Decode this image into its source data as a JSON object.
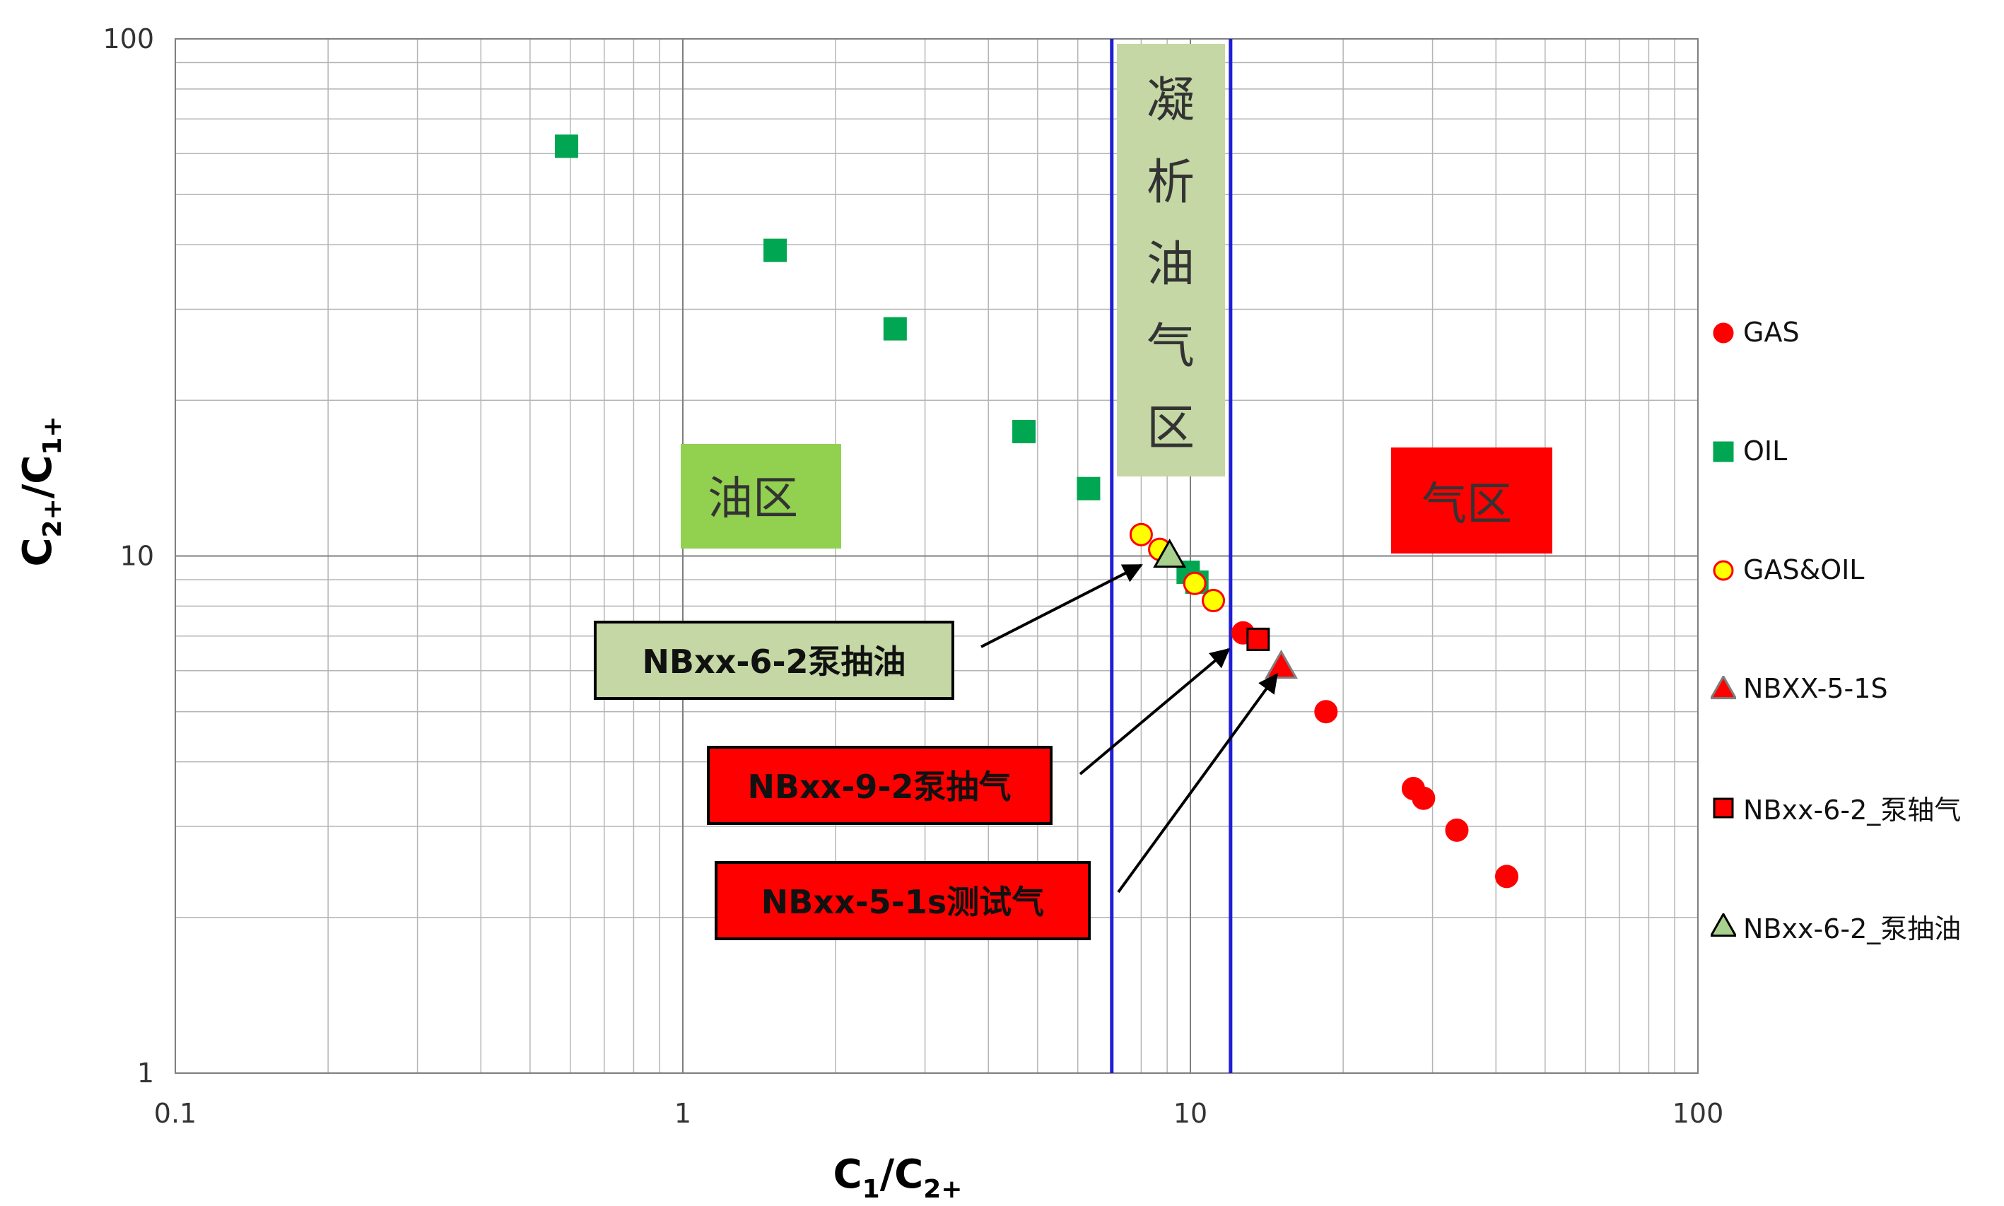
{
  "chart_data": {
    "type": "scatter",
    "scale": "log-log",
    "xlabel": {
      "main": "C",
      "sub1": "1",
      "slash": "/C",
      "sub2": "2+"
    },
    "ylabel": {
      "main": "C",
      "sub1": "2+",
      "slash": "/C",
      "sub2": "1+"
    },
    "xlim": [
      0.1,
      100
    ],
    "ylim": [
      1,
      100
    ],
    "x_ticks": [
      "0.1",
      "1",
      "10",
      "100"
    ],
    "y_ticks": [
      "1",
      "10",
      "100"
    ],
    "grid": true,
    "vertical_lines": [
      7,
      12
    ],
    "region_labels": [
      {
        "text": "油区",
        "color": "#92d050"
      },
      {
        "text": "凝析油气区",
        "color": "#c4d7a4",
        "chars": [
          "凝",
          "析",
          "油",
          "气",
          "区"
        ]
      },
      {
        "text": "气区",
        "color": "#ff0000"
      }
    ],
    "series": [
      {
        "name": "GAS",
        "marker": "circle",
        "color": "#ff0000",
        "edge": "#ff0000",
        "points": [
          [
            12.7,
            7.1
          ],
          [
            18.5,
            5.0
          ],
          [
            27.5,
            3.55
          ],
          [
            28.8,
            3.4
          ],
          [
            33.5,
            2.95
          ],
          [
            42,
            2.4
          ]
        ]
      },
      {
        "name": "OIL",
        "marker": "square",
        "color": "#00a651",
        "edge": "#00a651",
        "points": [
          [
            0.59,
            62
          ],
          [
            1.52,
            39
          ],
          [
            2.62,
            27.5
          ],
          [
            4.7,
            17.4
          ],
          [
            6.3,
            13.5
          ],
          [
            9.9,
            9.3
          ],
          [
            10.3,
            8.9
          ]
        ]
      },
      {
        "name": "GAS&OIL",
        "marker": "circle",
        "color": "#ffff00",
        "edge": "#ff0000",
        "points": [
          [
            8.0,
            11.0
          ],
          [
            8.7,
            10.3
          ],
          [
            10.2,
            8.85
          ],
          [
            11.1,
            8.2
          ]
        ]
      },
      {
        "name": "NBXX-5-1S",
        "marker": "triangle",
        "color": "#ff0000",
        "edge": "#7f7f7f",
        "points": [
          [
            15.1,
            6.1
          ]
        ]
      },
      {
        "name": "NBxx-6-2_泵轴气",
        "marker": "square",
        "color": "#ff0000",
        "edge": "#000000",
        "points": [
          [
            13.6,
            6.9
          ]
        ]
      },
      {
        "name": "NBxx-6-2_泵抽油",
        "marker": "triangle",
        "color": "#a9d18e",
        "edge": "#000000",
        "points": [
          [
            9.1,
            10.0
          ]
        ]
      }
    ],
    "annotations": [
      {
        "text": "NBxx-6-2泵抽油",
        "color": "#c4d7a4",
        "target": [
          8.0,
          9.6
        ]
      },
      {
        "text": "NBxx-9-2泵抽气",
        "color": "#ff0000",
        "target": [
          11.9,
          6.6
        ]
      },
      {
        "text": "NBxx-5-1s测试气",
        "color": "#ff0000",
        "target": [
          14.8,
          5.9
        ]
      }
    ],
    "legend_position": "right"
  }
}
